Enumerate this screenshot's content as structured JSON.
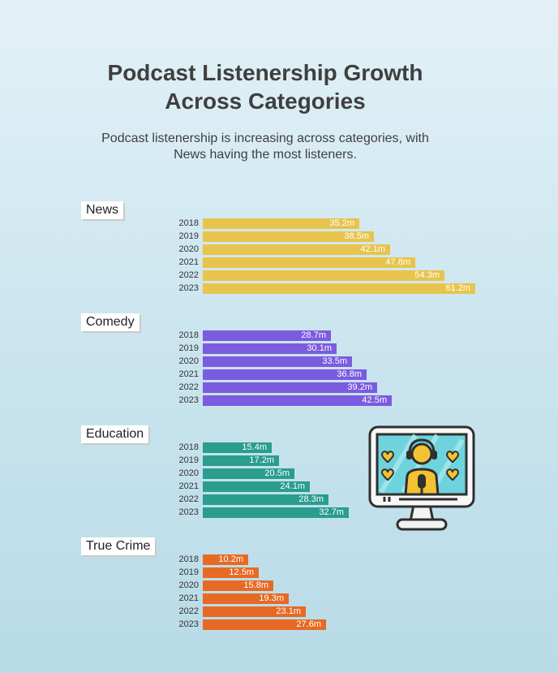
{
  "title_lines": [
    "Podcast Listenership Growth",
    "Across Categories"
  ],
  "subtitle_lines": [
    "Podcast listenership is increasing across categories, with",
    "News having the most listeners."
  ],
  "illustration": {
    "icon": "monitor-podcaster-icon"
  },
  "chart_data": {
    "type": "bar",
    "orientation": "horizontal",
    "title": "Podcast Listenership Growth Across Categories",
    "unit": "m",
    "categories": [
      "2018",
      "2019",
      "2020",
      "2021",
      "2022",
      "2023"
    ],
    "series": [
      {
        "name": "News",
        "color": "#e8c44d",
        "values": [
          35.2,
          38.5,
          42.1,
          47.8,
          54.3,
          61.2
        ],
        "labels": [
          "35.2m",
          "38.5m",
          "42.1m",
          "47.8m",
          "54.3m",
          "61.2m"
        ]
      },
      {
        "name": "Comedy",
        "color": "#7b5ce0",
        "values": [
          28.7,
          30.1,
          33.5,
          36.8,
          39.2,
          42.5
        ],
        "labels": [
          "28.7m",
          "30.1m",
          "33.5m",
          "36.8m",
          "39.2m",
          "42.5m"
        ]
      },
      {
        "name": "Education",
        "color": "#2a9d8f",
        "values": [
          15.4,
          17.2,
          20.5,
          24.1,
          28.3,
          32.7
        ],
        "labels": [
          "15.4m",
          "17.2m",
          "20.5m",
          "24.1m",
          "28.3m",
          "32.7m"
        ]
      },
      {
        "name": "True Crime",
        "color": "#e76a24",
        "values": [
          10.2,
          12.5,
          15.8,
          19.3,
          23.1,
          27.6
        ],
        "labels": [
          "10.2m",
          "12.5m",
          "15.8m",
          "19.3m",
          "23.1m",
          "27.6m"
        ]
      }
    ],
    "xlim": [
      0,
      61.2
    ],
    "grid": false,
    "legend": "none"
  }
}
